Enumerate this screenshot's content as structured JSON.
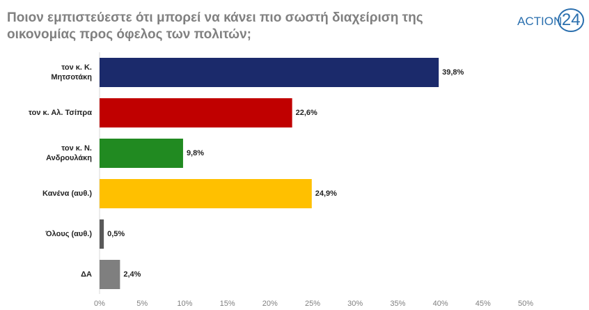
{
  "chart_data": {
    "type": "bar",
    "orientation": "horizontal",
    "title": "Ποιον εμπιστεύεστε ότι μπορεί να κάνει πιο σωστή διαχείριση της οικονομίας προς όφελος των πολιτών;",
    "logo": {
      "text": "ACTION",
      "number": "24"
    },
    "categories": [
      "τον κ. Κ.\nΜητσοτάκη",
      "τον κ. Αλ. Τσίπρα",
      "τον κ. Ν.\nΑνδρουλάκη",
      "Κανένα (αυθ.)",
      "Όλους (αυθ.)",
      "ΔΑ"
    ],
    "values": [
      39.8,
      22.6,
      9.8,
      24.9,
      0.5,
      2.4
    ],
    "value_labels": [
      "39,8%",
      "22,6%",
      "9,8%",
      "24,9%",
      "0,5%",
      "2,4%"
    ],
    "colors": [
      "#1b2a6b",
      "#c00000",
      "#218a21",
      "#ffc000",
      "#595959",
      "#7f7f7f"
    ],
    "xlim": [
      0,
      50
    ],
    "xticks": [
      {
        "value": 0,
        "label": "0%"
      },
      {
        "value": 5,
        "label": "5%"
      },
      {
        "value": 10,
        "label": "10%"
      },
      {
        "value": 15,
        "label": "15%"
      },
      {
        "value": 20,
        "label": "20%"
      },
      {
        "value": 25,
        "label": "25%"
      },
      {
        "value": 30,
        "label": "30%"
      },
      {
        "value": 35,
        "label": "35%"
      },
      {
        "value": 40,
        "label": "40%"
      },
      {
        "value": 45,
        "label": "45%"
      },
      {
        "value": 50,
        "label": "50%"
      }
    ],
    "grid": false
  }
}
